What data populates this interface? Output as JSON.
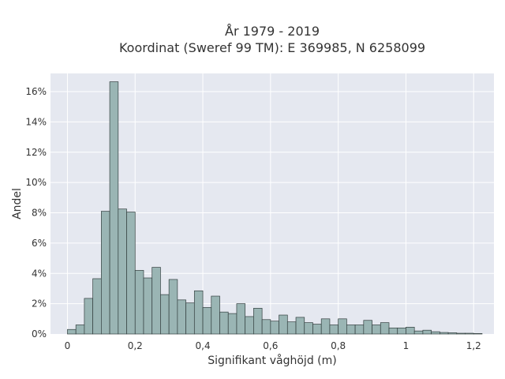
{
  "chart_data": {
    "type": "bar",
    "title_line1": "År 1979 - 2019",
    "title_line2": "Koordinat (Sweref 99 TM): E 369985, N 6258099",
    "xlabel": "Signifikant våghöjd (m)",
    "ylabel": "Andel",
    "xlim": [
      -0.05,
      1.26
    ],
    "ylim": [
      0,
      17.2
    ],
    "bin_width": 0.025,
    "bin_start": 0.0,
    "x_ticks": [
      {
        "value": 0,
        "label": "0"
      },
      {
        "value": 0.2,
        "label": "0,2"
      },
      {
        "value": 0.4,
        "label": "0,4"
      },
      {
        "value": 0.6,
        "label": "0,6"
      },
      {
        "value": 0.8,
        "label": "0,8"
      },
      {
        "value": 1.0,
        "label": "1"
      },
      {
        "value": 1.2,
        "label": "1,2"
      }
    ],
    "y_ticks": [
      {
        "value": 0,
        "label": "0%"
      },
      {
        "value": 2,
        "label": "2%"
      },
      {
        "value": 4,
        "label": "4%"
      },
      {
        "value": 6,
        "label": "6%"
      },
      {
        "value": 8,
        "label": "8%"
      },
      {
        "value": 10,
        "label": "10%"
      },
      {
        "value": 12,
        "label": "12%"
      },
      {
        "value": 14,
        "label": "14%"
      },
      {
        "value": 16,
        "label": "16%"
      }
    ],
    "values": [
      0.3,
      0.6,
      2.35,
      3.65,
      8.1,
      16.65,
      8.25,
      8.05,
      4.2,
      3.7,
      4.4,
      2.6,
      3.6,
      2.25,
      2.05,
      2.85,
      1.75,
      2.5,
      1.45,
      1.35,
      2.0,
      1.15,
      1.7,
      0.95,
      0.85,
      1.25,
      0.8,
      1.1,
      0.75,
      0.65,
      1.0,
      0.6,
      1.0,
      0.6,
      0.6,
      0.9,
      0.6,
      0.75,
      0.4,
      0.4,
      0.45,
      0.2,
      0.25,
      0.15,
      0.1,
      0.08,
      0.05,
      0.05,
      0.03
    ],
    "colors": {
      "plot_bg": "#e5e8f0",
      "grid": "#ffffff",
      "bar_fill": "#9ab5b4",
      "bar_stroke": "#333f3f"
    }
  }
}
